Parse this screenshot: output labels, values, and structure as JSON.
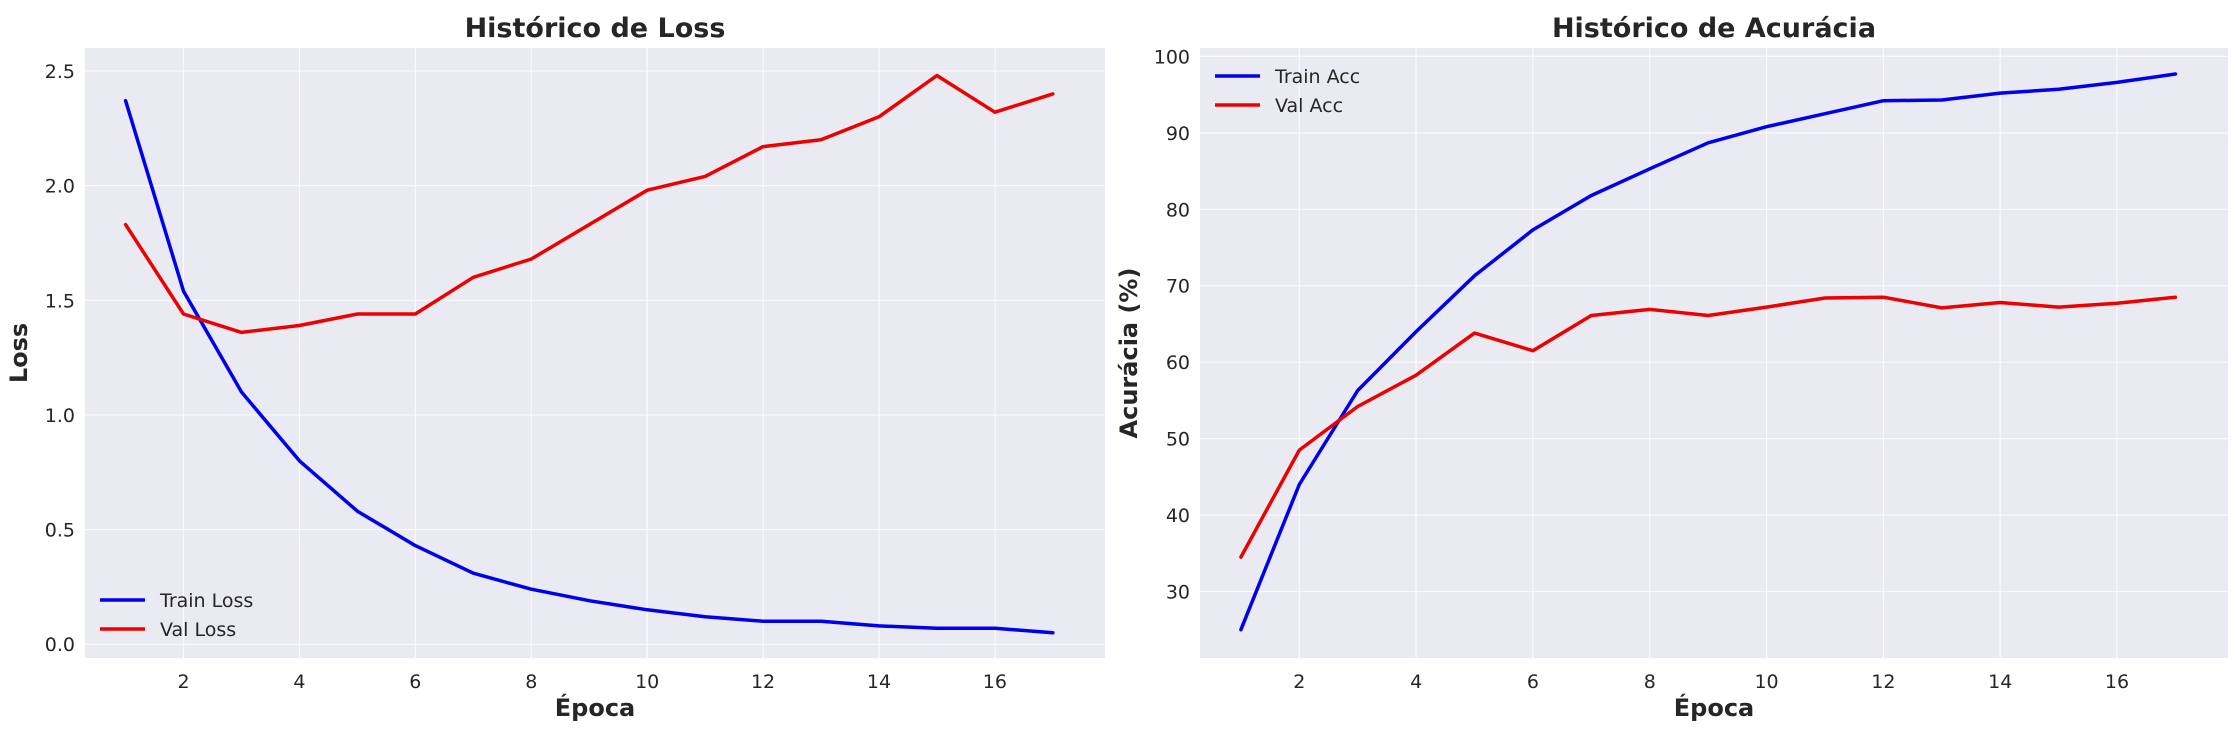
{
  "chart_data": [
    {
      "type": "line",
      "title": "Histórico de Loss",
      "xlabel": "Época",
      "ylabel": "Loss",
      "xlim": [
        0.3,
        17.9
      ],
      "ylim": [
        -0.06,
        2.6
      ],
      "xticks": [
        2,
        4,
        6,
        8,
        10,
        12,
        14,
        16
      ],
      "yticks": [
        0.0,
        0.5,
        1.0,
        1.5,
        2.0,
        2.5
      ],
      "ytick_labels": [
        "0.0",
        "0.5",
        "1.0",
        "1.5",
        "2.0",
        "2.5"
      ],
      "grid": true,
      "legend_position": "lower-left",
      "x": [
        1,
        2,
        3,
        4,
        5,
        6,
        7,
        8,
        9,
        10,
        11,
        12,
        13,
        14,
        15,
        16,
        17
      ],
      "series": [
        {
          "name": "Train Loss",
          "color": "#0000ee",
          "values": [
            2.37,
            1.54,
            1.1,
            0.8,
            0.58,
            0.43,
            0.31,
            0.24,
            0.19,
            0.15,
            0.12,
            0.1,
            0.1,
            0.08,
            0.07,
            0.07,
            0.05
          ]
        },
        {
          "name": "Val Loss",
          "color": "#ee0000",
          "values": [
            1.83,
            1.44,
            1.36,
            1.39,
            1.44,
            1.44,
            1.6,
            1.68,
            1.83,
            1.98,
            2.04,
            2.17,
            2.2,
            2.3,
            2.48,
            2.32,
            2.4
          ]
        }
      ]
    },
    {
      "type": "line",
      "title": "Histórico de Acurácia",
      "xlabel": "Época",
      "ylabel": "Acurácia (%)",
      "xlim": [
        0.3,
        17.9
      ],
      "ylim": [
        21.3,
        101.1
      ],
      "xticks": [
        2,
        4,
        6,
        8,
        10,
        12,
        14,
        16
      ],
      "yticks": [
        30,
        40,
        50,
        60,
        70,
        80,
        90,
        100
      ],
      "ytick_labels": [
        "30",
        "40",
        "50",
        "60",
        "70",
        "80",
        "90",
        "100"
      ],
      "grid": true,
      "legend_position": "upper-left",
      "x": [
        1,
        2,
        3,
        4,
        5,
        6,
        7,
        8,
        9,
        10,
        11,
        12,
        13,
        14,
        15,
        16,
        17
      ],
      "series": [
        {
          "name": "Train Acc",
          "color": "#0000ee",
          "values": [
            25.0,
            44.0,
            56.3,
            64.0,
            71.3,
            77.3,
            81.8,
            85.3,
            88.7,
            90.8,
            92.5,
            94.2,
            94.3,
            95.2,
            95.7,
            96.6,
            97.7
          ]
        },
        {
          "name": "Val Acc",
          "color": "#ee0000",
          "values": [
            34.5,
            48.5,
            54.2,
            58.3,
            63.8,
            61.5,
            66.1,
            66.9,
            66.1,
            67.2,
            68.4,
            68.5,
            67.1,
            67.8,
            67.2,
            67.7,
            68.5
          ]
        }
      ]
    }
  ]
}
